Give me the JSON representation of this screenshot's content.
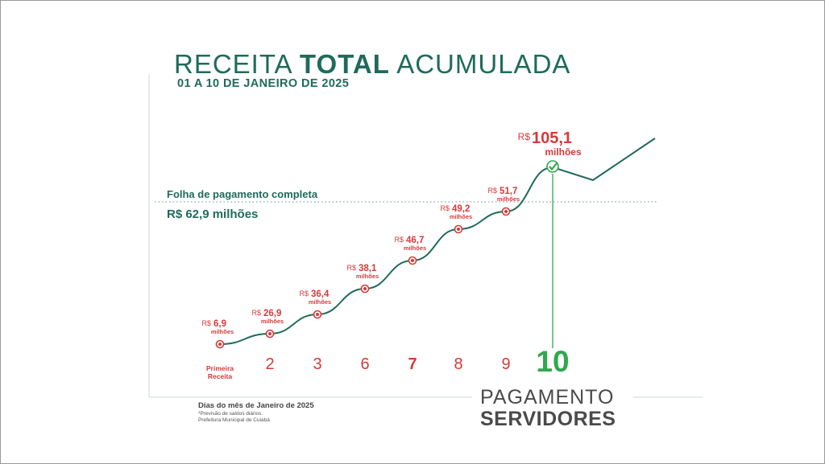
{
  "header": {
    "title_part1": "RECEITA ",
    "title_bold": "TOTAL",
    "title_part2": " ACUMULADA",
    "subtitle": "01 A 10 DE JANEIRO DE 2025"
  },
  "payroll": {
    "label": "Folha de pagamento completa",
    "value_text": "R$ 62,9 milhões",
    "value": 62.9
  },
  "chart_data": {
    "type": "line",
    "currency_prefix": "R$",
    "unit_label": "milhões",
    "categories": [
      "Primeira Receita",
      "2",
      "3",
      "6",
      "7",
      "8",
      "9",
      "10"
    ],
    "values": [
      6.9,
      26.9,
      36.4,
      38.1,
      46.7,
      49.2,
      51.7,
      105.1
    ],
    "value_labels": [
      "6,9",
      "26,9",
      "36,4",
      "38,1",
      "46,7",
      "49,2",
      "51,7",
      "105,1"
    ],
    "reference_line": 62.9,
    "highlight_category": "10",
    "colors": {
      "line": "#1f6b5b",
      "marker": "#d63a3a",
      "label": "#d63a3a",
      "highlight": "#2fa84f",
      "reference": "#6c8f86"
    }
  },
  "footer": {
    "axis_caption": "Dias do mês de Janeiro de 2025",
    "note1": "*Previsão de saldos diários.",
    "note2": "Prefeitura Municipal de Cuiabá"
  },
  "callout": {
    "line1": "PAGAMENTO",
    "line2": "SERVIDORES"
  }
}
